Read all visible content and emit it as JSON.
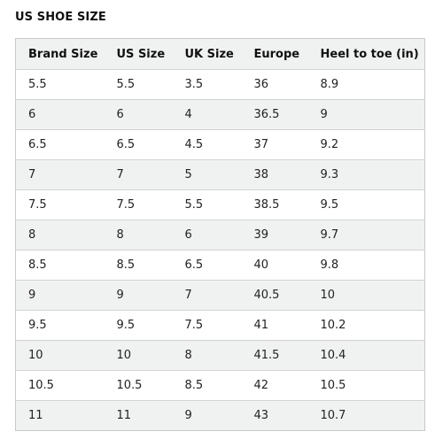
{
  "title": "US SHOE SIZE",
  "table": {
    "headers": [
      "Brand Size",
      "US Size",
      "UK Size",
      "Europe",
      "Heel to toe (in)"
    ],
    "rows": [
      [
        "5.5",
        "5.5",
        "3.5",
        "36",
        "8.9"
      ],
      [
        "6",
        "6",
        "4",
        "36.5",
        "9"
      ],
      [
        "6.5",
        "6.5",
        "4.5",
        "37",
        "9.2"
      ],
      [
        "7",
        "7",
        "5",
        "38",
        "9.3"
      ],
      [
        "7.5",
        "7.5",
        "5.5",
        "38.5",
        "9.5"
      ],
      [
        "8",
        "8",
        "6",
        "39",
        "9.7"
      ],
      [
        "8.5",
        "8.5",
        "6.5",
        "40",
        "9.8"
      ],
      [
        "9",
        "9",
        "7",
        "40.5",
        "10"
      ],
      [
        "9.5",
        "9.5",
        "7.5",
        "41",
        "10.2"
      ],
      [
        "10",
        "10",
        "8",
        "41.5",
        "10.4"
      ],
      [
        "10.5",
        "10.5",
        "8.5",
        "42",
        "10.5"
      ],
      [
        "11",
        "11",
        "9",
        "43",
        "10.7"
      ]
    ]
  }
}
